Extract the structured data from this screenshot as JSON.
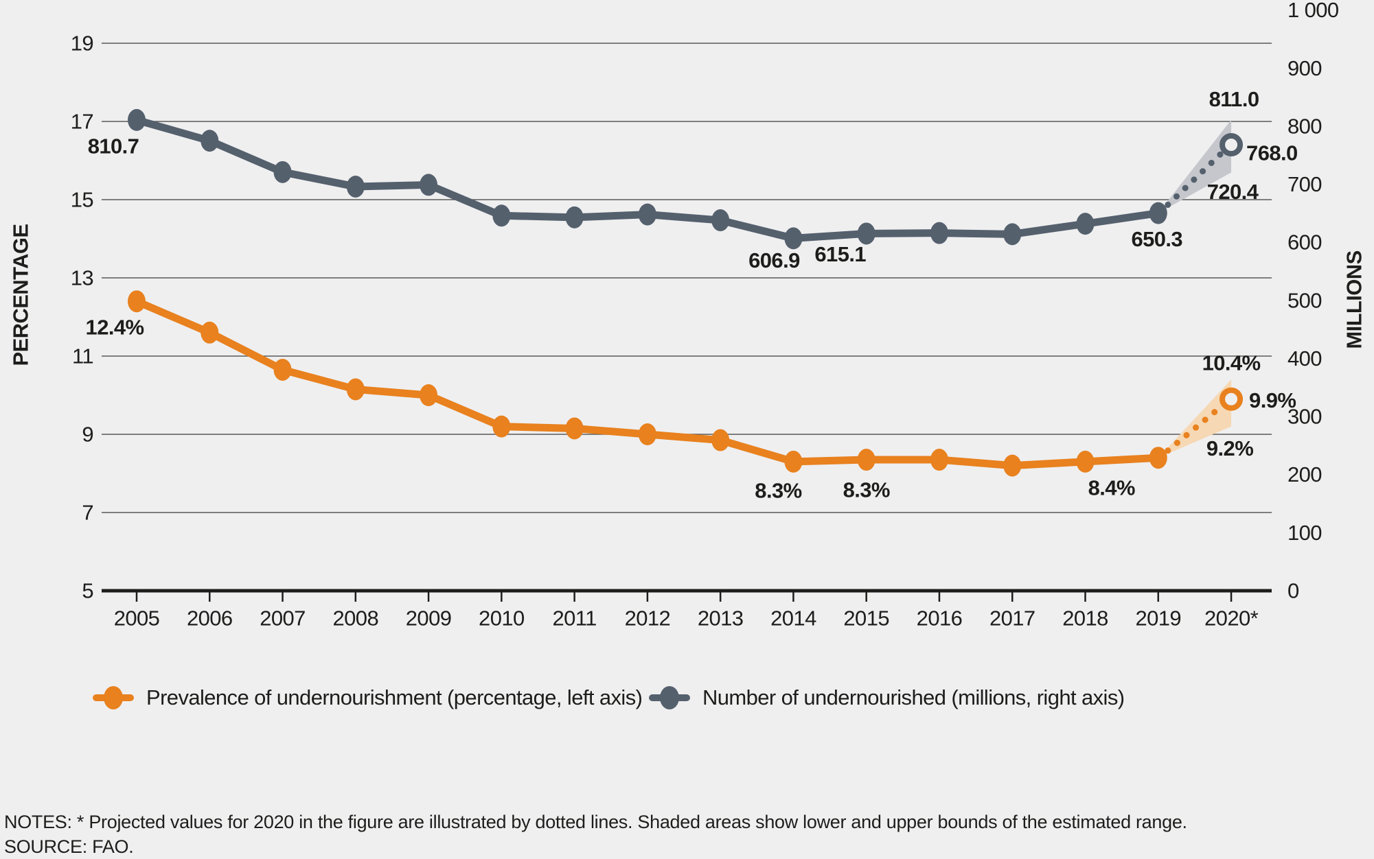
{
  "figure": {
    "background": "#efeff0",
    "text_color": "#1d1d1b",
    "gridline_color": "#595959"
  },
  "chart_data": {
    "type": "line",
    "x_tick_labels": [
      "2005",
      "2006",
      "2007",
      "2008",
      "2009",
      "2010",
      "2011",
      "2012",
      "2013",
      "2014",
      "2015",
      "2016",
      "2017",
      "2018",
      "2019",
      "2020*"
    ],
    "left_axis": {
      "title": "PERCENTAGE",
      "min": 5,
      "max": 19,
      "ticks": [
        5,
        7,
        9,
        11,
        13,
        15,
        17,
        19
      ],
      "tick_labels": [
        "5",
        "7",
        "9",
        "11",
        "13",
        "15",
        "17",
        "19"
      ]
    },
    "right_axis": {
      "title": "MILLIONS",
      "min": 0,
      "max": 1000,
      "ticks": [
        0,
        100,
        200,
        300,
        400,
        500,
        600,
        700,
        800,
        900,
        1000
      ],
      "tick_labels": [
        "0",
        "100",
        "200",
        "300",
        "400",
        "500",
        "600",
        "700",
        "800",
        "900",
        "1 000"
      ]
    },
    "grid": "horizontal-only",
    "legend_position": "bottom",
    "series": [
      {
        "name": "Prevalence of undernourishment (percentage, left axis)",
        "axis": "left",
        "color": "#e8811e",
        "band_fill": "#f6d8b4",
        "values": [
          12.4,
          11.6,
          10.65,
          10.15,
          10.0,
          9.2,
          9.15,
          9.0,
          8.85,
          8.3,
          8.35,
          8.35,
          8.2,
          8.3,
          8.4
        ],
        "projection_2020": {
          "value": 9.9,
          "lower": 9.2,
          "upper": 10.4
        },
        "annotations": [
          {
            "point": 0,
            "text": "12.4%",
            "dx": -32,
            "dy": 38,
            "anchor": "middle"
          },
          {
            "point": 9,
            "text": "8.3%",
            "dx": -22,
            "dy": 42,
            "anchor": "middle"
          },
          {
            "point": 10,
            "text": "8.3%",
            "dx": 0,
            "dy": 44,
            "anchor": "middle"
          },
          {
            "point": 14,
            "text": "8.4%",
            "dx": -68,
            "dy": 44,
            "anchor": "middle"
          },
          {
            "proj": "upper",
            "text": "10.4%",
            "dx": 0,
            "dy": -24,
            "anchor": "middle"
          },
          {
            "proj": "mid",
            "text": "9.9%",
            "dx": 26,
            "dy": 2,
            "anchor": "start"
          },
          {
            "proj": "lower",
            "text": "9.2%",
            "dx": -2,
            "dy": 32,
            "anchor": "middle"
          }
        ]
      },
      {
        "name": "Number of undernourished (millions, right axis)",
        "axis": "right",
        "color": "#55606d",
        "band_fill": "#c5c7cc",
        "values": [
          810.7,
          775,
          721,
          696,
          699,
          646,
          643,
          648,
          638,
          606.9,
          615.1,
          616,
          614,
          632,
          650.3
        ],
        "projection_2020": {
          "value": 768.0,
          "lower": 720.4,
          "upper": 811.0
        },
        "annotations": [
          {
            "point": 0,
            "text": "810.7",
            "dx": -34,
            "dy": 38,
            "anchor": "middle"
          },
          {
            "point": 9,
            "text": "606.9",
            "dx": -28,
            "dy": 32,
            "anchor": "middle"
          },
          {
            "point": 10,
            "text": "615.1",
            "dx": -38,
            "dy": 30,
            "anchor": "middle"
          },
          {
            "point": 14,
            "text": "650.3",
            "dx": -2,
            "dy": 38,
            "anchor": "middle"
          },
          {
            "proj": "upper",
            "text": "811.0",
            "dx": 4,
            "dy": -30,
            "anchor": "middle"
          },
          {
            "proj": "mid",
            "text": "768.0",
            "dx": 22,
            "dy": 12,
            "anchor": "start"
          },
          {
            "proj": "lower",
            "text": "720.4",
            "dx": 2,
            "dy": 28,
            "anchor": "middle"
          }
        ]
      }
    ]
  },
  "legend": {
    "items": [
      {
        "label": "Prevalence of undernourishment (percentage, left axis)",
        "color": "#e8811e"
      },
      {
        "label": "Number of undernourished (millions, right axis)",
        "color": "#55606d"
      }
    ]
  },
  "notes": {
    "line1": "NOTES: * Projected values for 2020 in the figure are illustrated by dotted lines. Shaded areas show lower and upper bounds of the estimated range.",
    "line2": "SOURCE: FAO."
  }
}
